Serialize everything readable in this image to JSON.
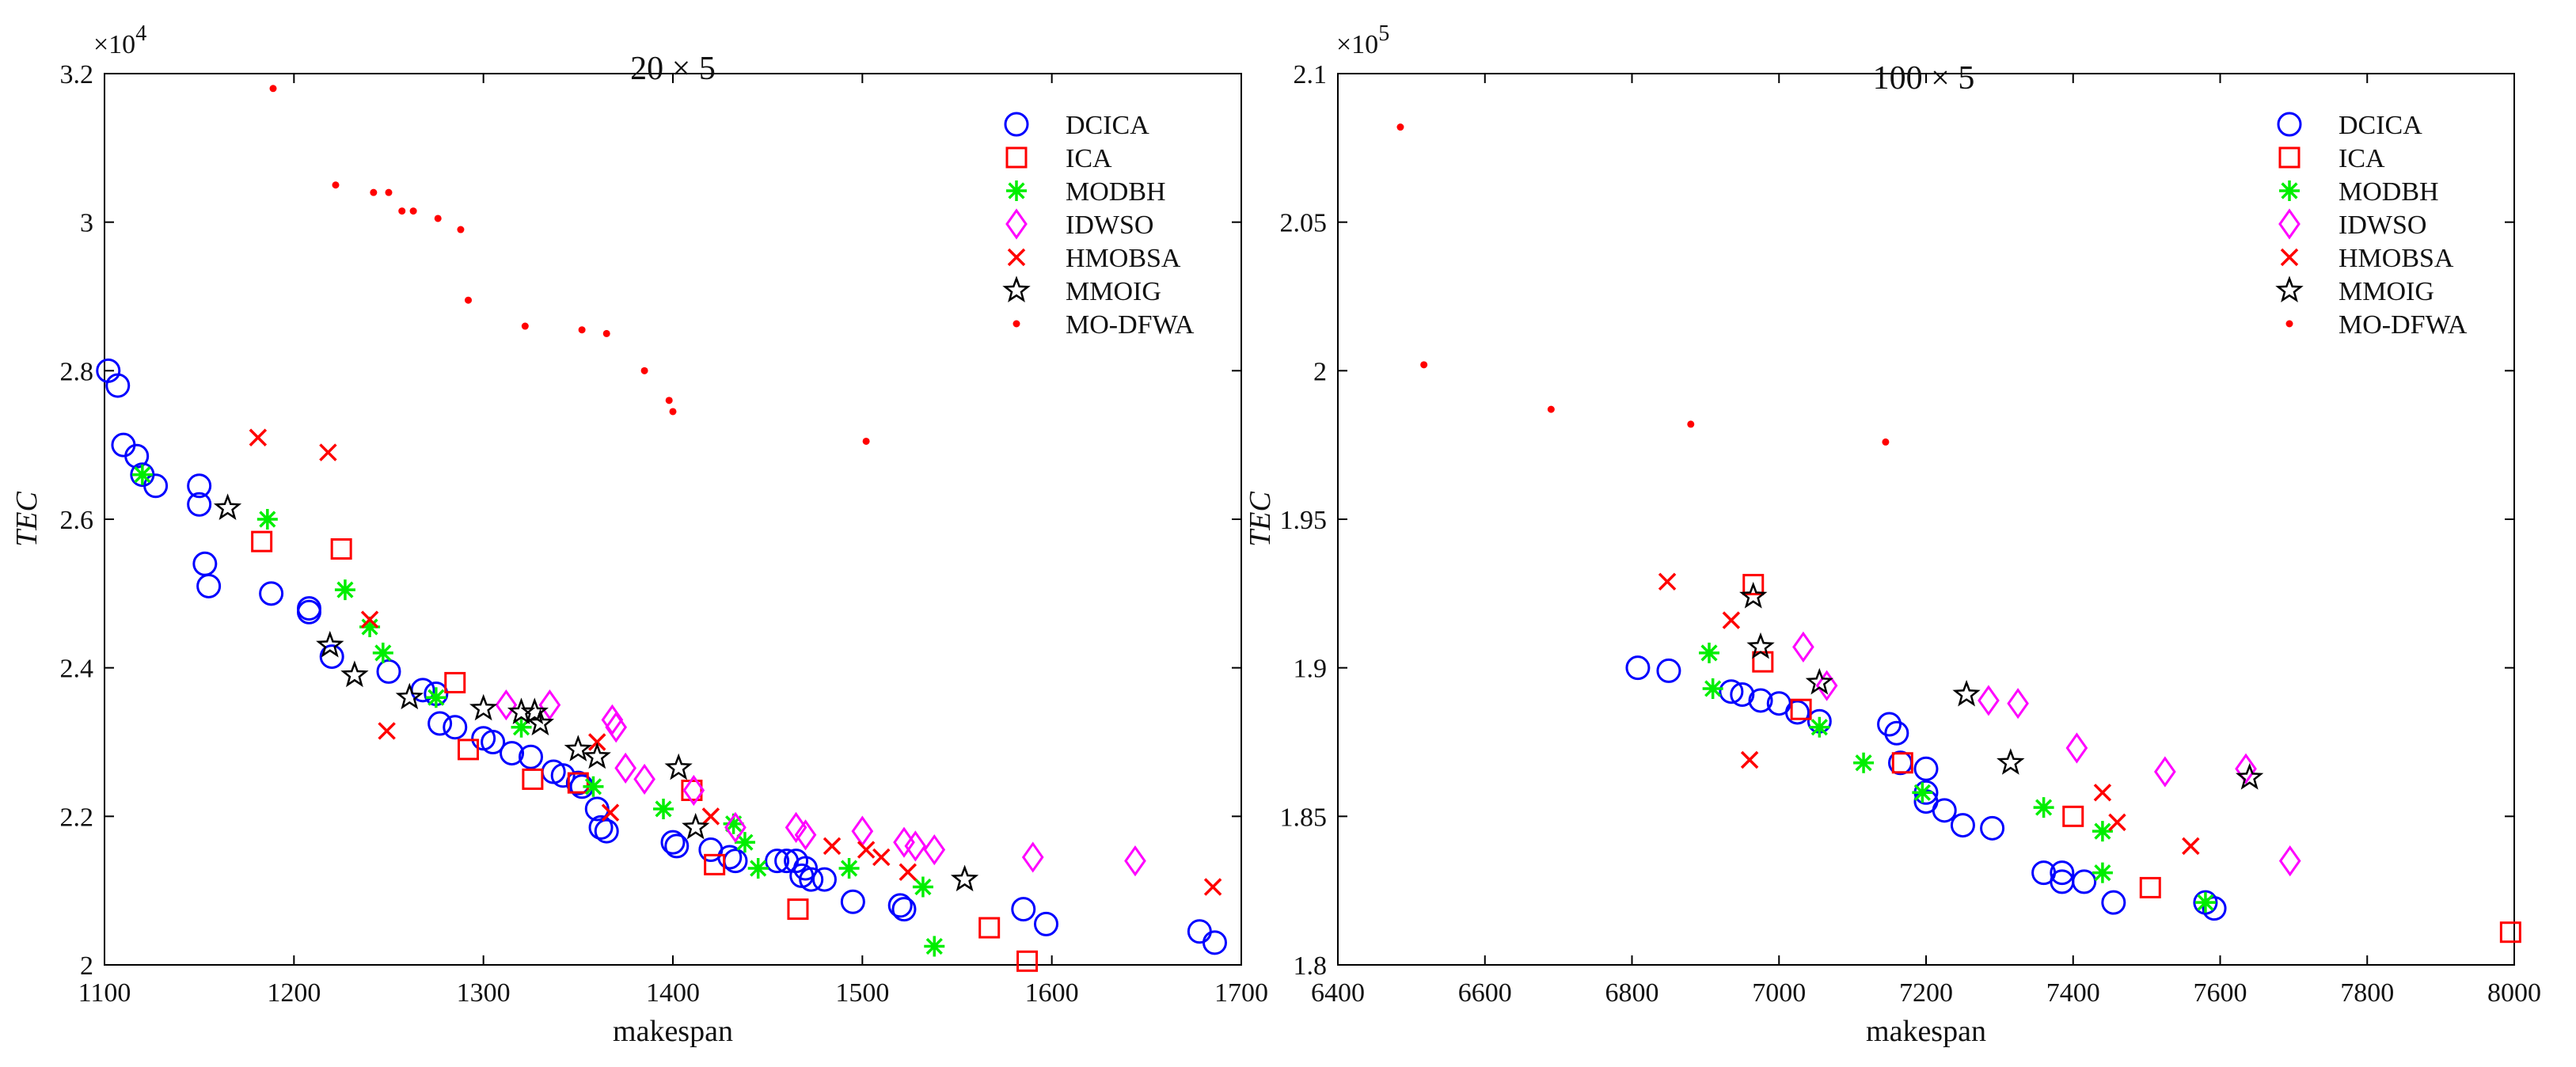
{
  "chart_data": [
    {
      "type": "scatter",
      "title": "20 × 5",
      "xlabel": "makespan",
      "ylabel": "TEC",
      "y_exponent_label": "×10",
      "y_exponent_power": "4",
      "xlim": [
        1100,
        1700
      ],
      "ylim": [
        2.0,
        3.2
      ],
      "xticks": [
        1100,
        1200,
        1300,
        1400,
        1500,
        1600,
        1700
      ],
      "xtick_labels": [
        "1100",
        "1200",
        "1300",
        "1400",
        "1500",
        "1600",
        "1700"
      ],
      "yticks": [
        2.0,
        2.2,
        2.4,
        2.6,
        2.8,
        3.0,
        3.2
      ],
      "ytick_labels": [
        "2",
        "2.2",
        "2.4",
        "2.6",
        "2.8",
        "3",
        "3.2"
      ],
      "legend_position": "top-right",
      "series": [
        {
          "name": "DCICA",
          "marker": "circle",
          "color": "#0000ff",
          "points": [
            [
              1102,
              2.8
            ],
            [
              1107,
              2.78
            ],
            [
              1110,
              2.7
            ],
            [
              1117,
              2.685
            ],
            [
              1120,
              2.66
            ],
            [
              1127,
              2.645
            ],
            [
              1150,
              2.645
            ],
            [
              1150,
              2.62
            ],
            [
              1153,
              2.54
            ],
            [
              1155,
              2.51
            ],
            [
              1188,
              2.5
            ],
            [
              1208,
              2.48
            ],
            [
              1208,
              2.475
            ],
            [
              1220,
              2.415
            ],
            [
              1250,
              2.395
            ],
            [
              1268,
              2.37
            ],
            [
              1275,
              2.365
            ],
            [
              1277,
              2.325
            ],
            [
              1285,
              2.32
            ],
            [
              1300,
              2.305
            ],
            [
              1305,
              2.3
            ],
            [
              1315,
              2.285
            ],
            [
              1325,
              2.28
            ],
            [
              1337,
              2.26
            ],
            [
              1342,
              2.255
            ],
            [
              1350,
              2.245
            ],
            [
              1352,
              2.24
            ],
            [
              1360,
              2.21
            ],
            [
              1362,
              2.185
            ],
            [
              1365,
              2.18
            ],
            [
              1400,
              2.165
            ],
            [
              1402,
              2.16
            ],
            [
              1420,
              2.155
            ],
            [
              1430,
              2.145
            ],
            [
              1433,
              2.14
            ],
            [
              1455,
              2.14
            ],
            [
              1460,
              2.14
            ],
            [
              1465,
              2.14
            ],
            [
              1470,
              2.13
            ],
            [
              1468,
              2.12
            ],
            [
              1473,
              2.115
            ],
            [
              1480,
              2.115
            ],
            [
              1495,
              2.085
            ],
            [
              1520,
              2.08
            ],
            [
              1522,
              2.075
            ],
            [
              1585,
              2.075
            ],
            [
              1597,
              2.055
            ],
            [
              1678,
              2.045
            ],
            [
              1686,
              2.03
            ]
          ]
        },
        {
          "name": "ICA",
          "marker": "square",
          "color": "#ff0000",
          "points": [
            [
              1183,
              2.57
            ],
            [
              1225,
              2.56
            ],
            [
              1285,
              2.38
            ],
            [
              1292,
              2.29
            ],
            [
              1326,
              2.25
            ],
            [
              1350,
              2.245
            ],
            [
              1410,
              2.235
            ],
            [
              1422,
              2.135
            ],
            [
              1466,
              2.075
            ],
            [
              1567,
              2.05
            ],
            [
              1587,
              2.005
            ]
          ]
        },
        {
          "name": "MODBH",
          "marker": "asterisk",
          "color": "#00ee00",
          "points": [
            [
              1120,
              2.66
            ],
            [
              1186,
              2.6
            ],
            [
              1227,
              2.505
            ],
            [
              1240,
              2.455
            ],
            [
              1247,
              2.42
            ],
            [
              1275,
              2.36
            ],
            [
              1320,
              2.32
            ],
            [
              1358,
              2.24
            ],
            [
              1395,
              2.21
            ],
            [
              1432,
              2.19
            ],
            [
              1438,
              2.165
            ],
            [
              1445,
              2.13
            ],
            [
              1493,
              2.13
            ],
            [
              1532,
              2.105
            ],
            [
              1538,
              2.025
            ]
          ]
        },
        {
          "name": "IDWSO",
          "marker": "diamond",
          "color": "#ff00ff",
          "points": [
            [
              1312,
              2.35
            ],
            [
              1335,
              2.35
            ],
            [
              1368,
              2.33
            ],
            [
              1370,
              2.32
            ],
            [
              1375,
              2.265
            ],
            [
              1385,
              2.25
            ],
            [
              1411,
              2.235
            ],
            [
              1433,
              2.185
            ],
            [
              1465,
              2.185
            ],
            [
              1470,
              2.175
            ],
            [
              1500,
              2.18
            ],
            [
              1522,
              2.165
            ],
            [
              1528,
              2.16
            ],
            [
              1538,
              2.155
            ],
            [
              1590,
              2.145
            ],
            [
              1644,
              2.14
            ]
          ]
        },
        {
          "name": "HMOBSA",
          "marker": "cross",
          "color": "#ff0000",
          "points": [
            [
              1181,
              2.71
            ],
            [
              1218,
              2.69
            ],
            [
              1240,
              2.465
            ],
            [
              1249,
              2.315
            ],
            [
              1360,
              2.3
            ],
            [
              1367,
              2.205
            ],
            [
              1420,
              2.2
            ],
            [
              1484,
              2.16
            ],
            [
              1502,
              2.155
            ],
            [
              1510,
              2.145
            ],
            [
              1524,
              2.125
            ],
            [
              1685,
              2.105
            ]
          ]
        },
        {
          "name": "MMOIG",
          "marker": "star",
          "color": "#000000",
          "points": [
            [
              1165,
              2.615
            ],
            [
              1219,
              2.43
            ],
            [
              1232,
              2.39
            ],
            [
              1261,
              2.36
            ],
            [
              1300,
              2.345
            ],
            [
              1320,
              2.34
            ],
            [
              1327,
              2.34
            ],
            [
              1330,
              2.325
            ],
            [
              1350,
              2.29
            ],
            [
              1360,
              2.28
            ],
            [
              1403,
              2.265
            ],
            [
              1412,
              2.185
            ],
            [
              1554,
              2.115
            ]
          ]
        },
        {
          "name": "MO-DFWA",
          "marker": "dot",
          "color": "#ff0000",
          "points": [
            [
              1189,
              3.18
            ],
            [
              1222,
              3.05
            ],
            [
              1242,
              3.04
            ],
            [
              1250,
              3.04
            ],
            [
              1257,
              3.015
            ],
            [
              1263,
              3.015
            ],
            [
              1276,
              3.005
            ],
            [
              1288,
              2.99
            ],
            [
              1292,
              2.895
            ],
            [
              1322,
              2.86
            ],
            [
              1352,
              2.855
            ],
            [
              1365,
              2.85
            ],
            [
              1385,
              2.8
            ],
            [
              1398,
              2.76
            ],
            [
              1400,
              2.745
            ],
            [
              1502,
              2.705
            ]
          ]
        }
      ]
    },
    {
      "type": "scatter",
      "title": "100 × 5",
      "xlabel": "makespan",
      "ylabel": "TEC",
      "y_exponent_label": "×10",
      "y_exponent_power": "5",
      "xlim": [
        6400,
        8000
      ],
      "ylim": [
        1.8,
        2.1
      ],
      "xticks": [
        6400,
        6600,
        6800,
        7000,
        7200,
        7400,
        7600,
        7800,
        8000
      ],
      "xtick_labels": [
        "6400",
        "6600",
        "6800",
        "7000",
        "7200",
        "7400",
        "7600",
        "7800",
        "8000"
      ],
      "yticks": [
        1.8,
        1.85,
        1.9,
        1.95,
        2.0,
        2.05,
        2.1
      ],
      "ytick_labels": [
        "1.8",
        "1.85",
        "1.9",
        "1.95",
        "2",
        "2.05",
        "2.1"
      ],
      "legend_position": "top-right",
      "series": [
        {
          "name": "DCICA",
          "marker": "circle",
          "color": "#0000ff",
          "points": [
            [
              6808,
              1.9
            ],
            [
              6850,
              1.899
            ],
            [
              6935,
              1.892
            ],
            [
              6950,
              1.891
            ],
            [
              6975,
              1.889
            ],
            [
              7000,
              1.888
            ],
            [
              7025,
              1.885
            ],
            [
              7055,
              1.882
            ],
            [
              7150,
              1.881
            ],
            [
              7160,
              1.878
            ],
            [
              7165,
              1.868
            ],
            [
              7200,
              1.866
            ],
            [
              7200,
              1.858
            ],
            [
              7200,
              1.855
            ],
            [
              7225,
              1.852
            ],
            [
              7250,
              1.847
            ],
            [
              7290,
              1.846
            ],
            [
              7360,
              1.831
            ],
            [
              7385,
              1.831
            ],
            [
              7385,
              1.828
            ],
            [
              7415,
              1.828
            ],
            [
              7455,
              1.821
            ],
            [
              7580,
              1.821
            ],
            [
              7592,
              1.819
            ]
          ]
        },
        {
          "name": "ICA",
          "marker": "square",
          "color": "#ff0000",
          "points": [
            [
              6965,
              1.928
            ],
            [
              6978,
              1.902
            ],
            [
              7030,
              1.886
            ],
            [
              7168,
              1.868
            ],
            [
              7400,
              1.85
            ],
            [
              7505,
              1.826
            ],
            [
              7995,
              1.811
            ]
          ]
        },
        {
          "name": "MODBH",
          "marker": "asterisk",
          "color": "#00ee00",
          "points": [
            [
              6905,
              1.905
            ],
            [
              6910,
              1.893
            ],
            [
              7055,
              1.88
            ],
            [
              7115,
              1.868
            ],
            [
              7195,
              1.858
            ],
            [
              7360,
              1.853
            ],
            [
              7440,
              1.845
            ],
            [
              7440,
              1.831
            ],
            [
              7580,
              1.821
            ]
          ]
        },
        {
          "name": "IDWSO",
          "marker": "diamond",
          "color": "#ff00ff",
          "points": [
            [
              7033,
              1.907
            ],
            [
              7065,
              1.894
            ],
            [
              7285,
              1.889
            ],
            [
              7325,
              1.888
            ],
            [
              7405,
              1.873
            ],
            [
              7525,
              1.865
            ],
            [
              7635,
              1.866
            ],
            [
              7695,
              1.835
            ]
          ]
        },
        {
          "name": "HMOBSA",
          "marker": "cross",
          "color": "#ff0000",
          "points": [
            [
              6848,
              1.929
            ],
            [
              6935,
              1.916
            ],
            [
              6960,
              1.869
            ],
            [
              7440,
              1.858
            ],
            [
              7460,
              1.848
            ],
            [
              7560,
              1.84
            ]
          ]
        },
        {
          "name": "MMOIG",
          "marker": "star",
          "color": "#000000",
          "points": [
            [
              6965,
              1.924
            ],
            [
              6975,
              1.907
            ],
            [
              7055,
              1.895
            ],
            [
              7255,
              1.891
            ],
            [
              7315,
              1.868
            ],
            [
              7640,
              1.863
            ]
          ]
        },
        {
          "name": "MO-DFWA",
          "marker": "dot",
          "color": "#ff0000",
          "points": [
            [
              6485,
              2.082
            ],
            [
              6517,
              2.002
            ],
            [
              6690,
              1.987
            ],
            [
              6880,
              1.982
            ],
            [
              7145,
              1.976
            ]
          ]
        }
      ]
    }
  ]
}
